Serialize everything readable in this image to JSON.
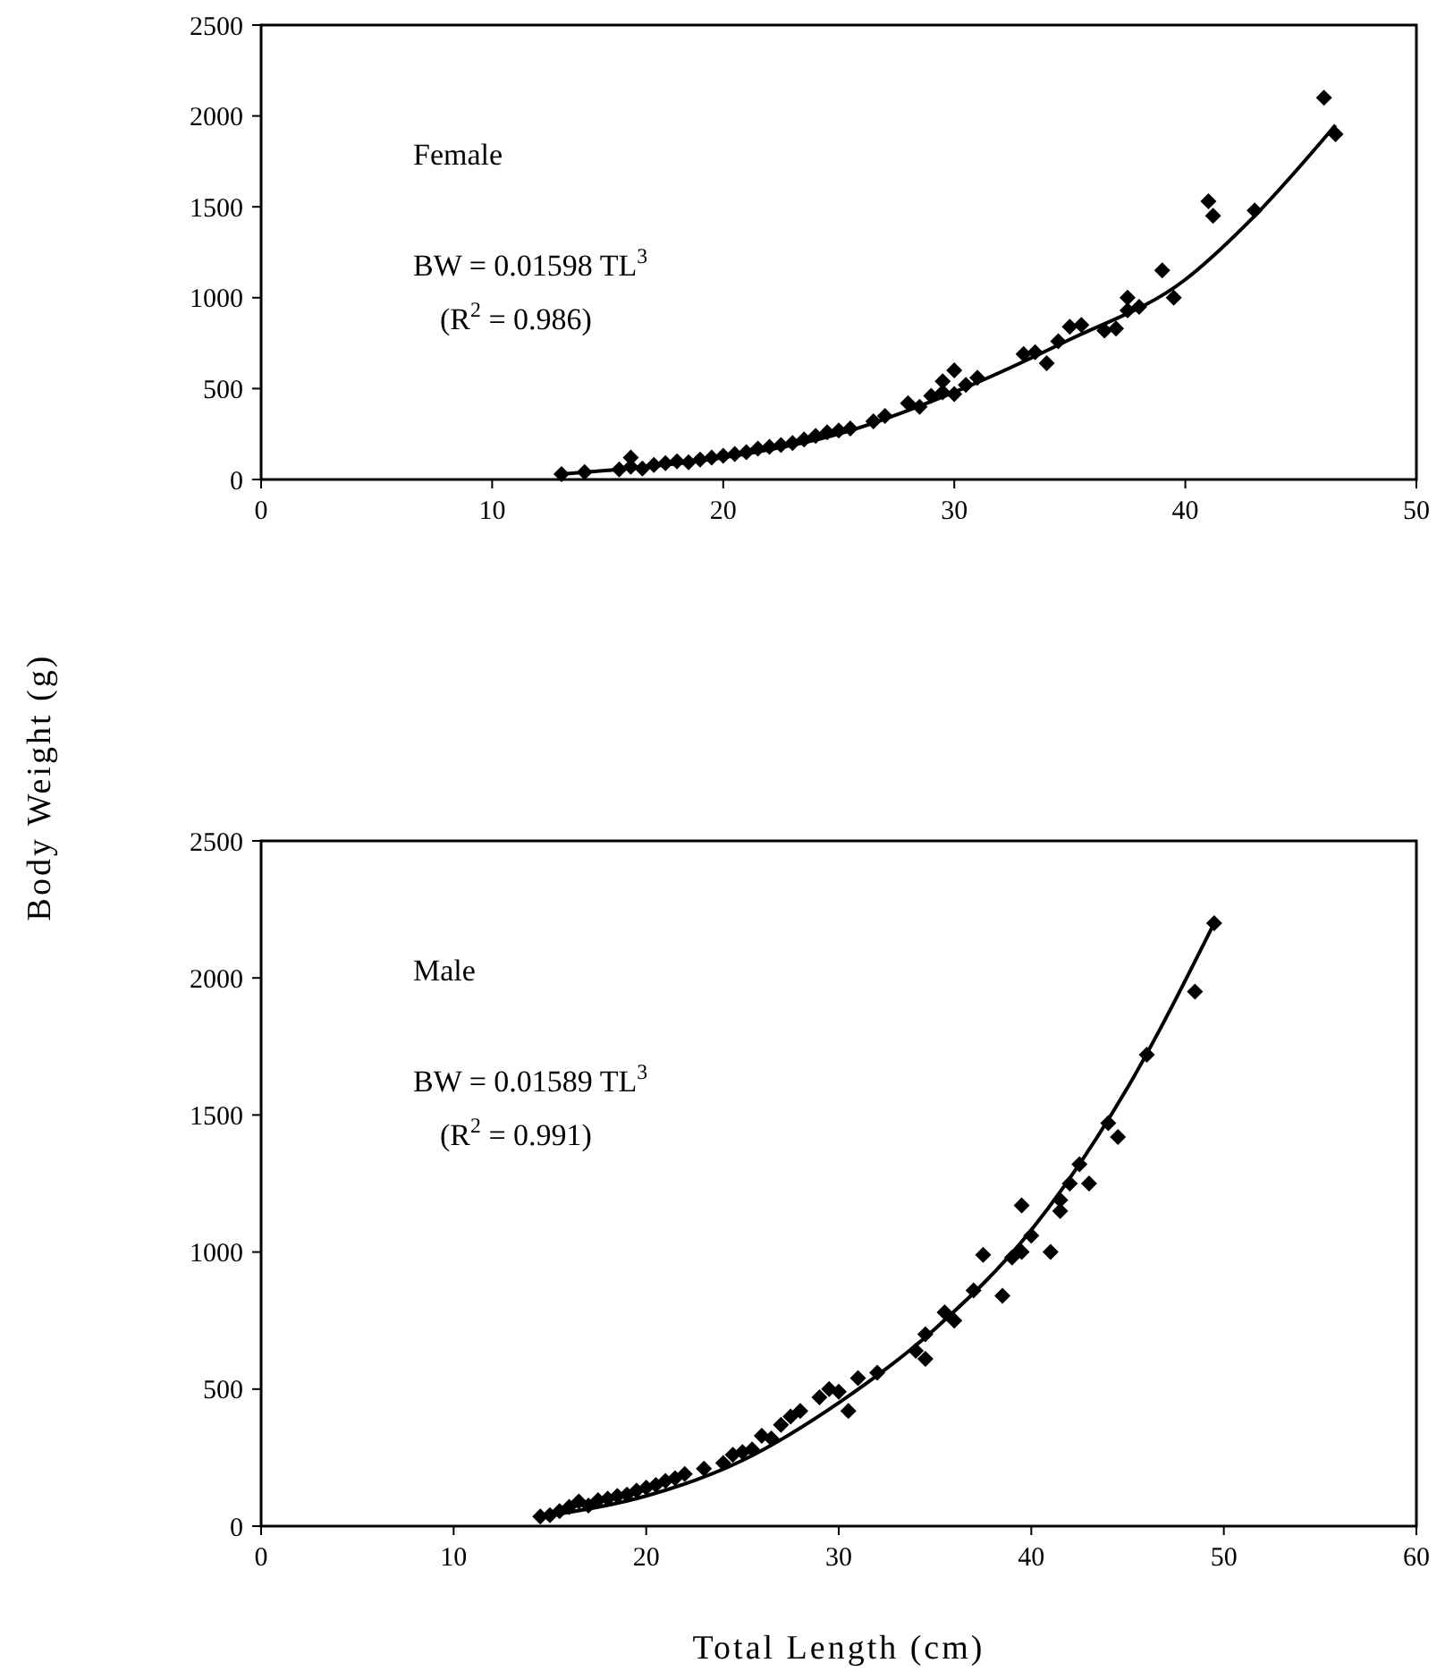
{
  "chart_data": [
    {
      "type": "scatter",
      "ylabel": "Body Weight (g)",
      "annotations": [
        "Female",
        "BW = 0.01598 TL$^{3}$",
        "(R$^{2}$ = 0.986)"
      ],
      "xlim": [
        0,
        50
      ],
      "xticks": [
        0,
        10,
        20,
        30,
        40,
        50
      ],
      "ylim": [
        0,
        2500
      ],
      "yticks": [
        0,
        500,
        1000,
        1500,
        2000,
        2500
      ],
      "grid": false,
      "marker": "diamond",
      "series": [
        {
          "color": "#000000",
          "x": [
            13,
            14,
            15.5,
            16,
            16,
            16.5,
            17,
            17.5,
            18,
            18.5,
            19,
            19.5,
            20,
            20.5,
            21,
            21.5,
            22,
            22.5,
            23,
            23.5,
            24,
            24.5,
            25,
            25.5,
            26.5,
            27,
            28,
            28.5,
            29,
            29.5,
            29.5,
            30,
            30,
            30.5,
            31,
            33,
            33.5,
            34,
            34.5,
            35,
            35.5,
            36.5,
            37,
            37.5,
            37.5,
            38,
            39,
            39.5,
            41,
            41.2,
            43,
            46,
            46.5
          ],
          "values": [
            30,
            40,
            55,
            120,
            70,
            60,
            80,
            90,
            100,
            95,
            110,
            120,
            130,
            140,
            150,
            170,
            180,
            190,
            200,
            220,
            240,
            260,
            270,
            280,
            320,
            350,
            420,
            400,
            460,
            540,
            480,
            600,
            470,
            520,
            560,
            690,
            700,
            640,
            760,
            840,
            850,
            820,
            830,
            1000,
            930,
            950,
            1150,
            1000,
            1530,
            1450,
            1480,
            2100,
            1900
          ]
        },
        {
          "type": "line",
          "color": "#000000",
          "marker": "none",
          "x": [
            13,
            15,
            20,
            25,
            30,
            35,
            40,
            43,
            46.5
          ],
          "values": [
            30,
            50,
            120,
            250,
            480,
            770,
            1100,
            1450,
            1950
          ]
        }
      ]
    },
    {
      "type": "scatter",
      "xlabel": "Total Length (cm)",
      "annotations": [
        "Male",
        "BW = 0.01589 TL$^{3}$",
        "(R$^{2}$ = 0.991)"
      ],
      "xlim": [
        0,
        60
      ],
      "xticks": [
        0,
        10,
        20,
        30,
        40,
        50,
        60
      ],
      "ylim": [
        0,
        2500
      ],
      "yticks": [
        0,
        500,
        1000,
        1500,
        2000,
        2500
      ],
      "grid": false,
      "marker": "diamond",
      "series": [
        {
          "color": "#000000",
          "x": [
            14.5,
            15,
            15.5,
            16,
            16.5,
            17,
            17.5,
            18,
            18.5,
            19,
            19.5,
            20,
            20.5,
            21,
            21.5,
            22,
            23,
            24,
            24.5,
            25,
            25.5,
            26,
            26.5,
            27,
            27.5,
            28,
            29,
            29.5,
            30,
            30.5,
            31,
            32,
            34,
            34.5,
            34.5,
            35.5,
            36,
            37,
            37.5,
            38.5,
            39,
            39.5,
            39.5,
            40,
            41,
            41.5,
            41.5,
            42,
            42.5,
            43,
            44,
            44.5,
            46,
            48.5,
            49.5
          ],
          "values": [
            35,
            40,
            55,
            70,
            90,
            75,
            95,
            100,
            110,
            115,
            130,
            140,
            150,
            165,
            175,
            190,
            210,
            230,
            260,
            270,
            280,
            330,
            320,
            370,
            400,
            420,
            470,
            500,
            490,
            420,
            540,
            560,
            640,
            700,
            610,
            780,
            750,
            860,
            990,
            840,
            980,
            1170,
            1000,
            1060,
            1000,
            1150,
            1190,
            1250,
            1320,
            1250,
            1470,
            1420,
            1720,
            1950,
            2200
          ]
        },
        {
          "type": "line",
          "color": "#000000",
          "marker": "none",
          "x": [
            14.5,
            15,
            20,
            25,
            30,
            35,
            40,
            45,
            49.5
          ],
          "values": [
            35,
            40,
            110,
            240,
            450,
            720,
            1080,
            1600,
            2200
          ]
        }
      ]
    }
  ]
}
